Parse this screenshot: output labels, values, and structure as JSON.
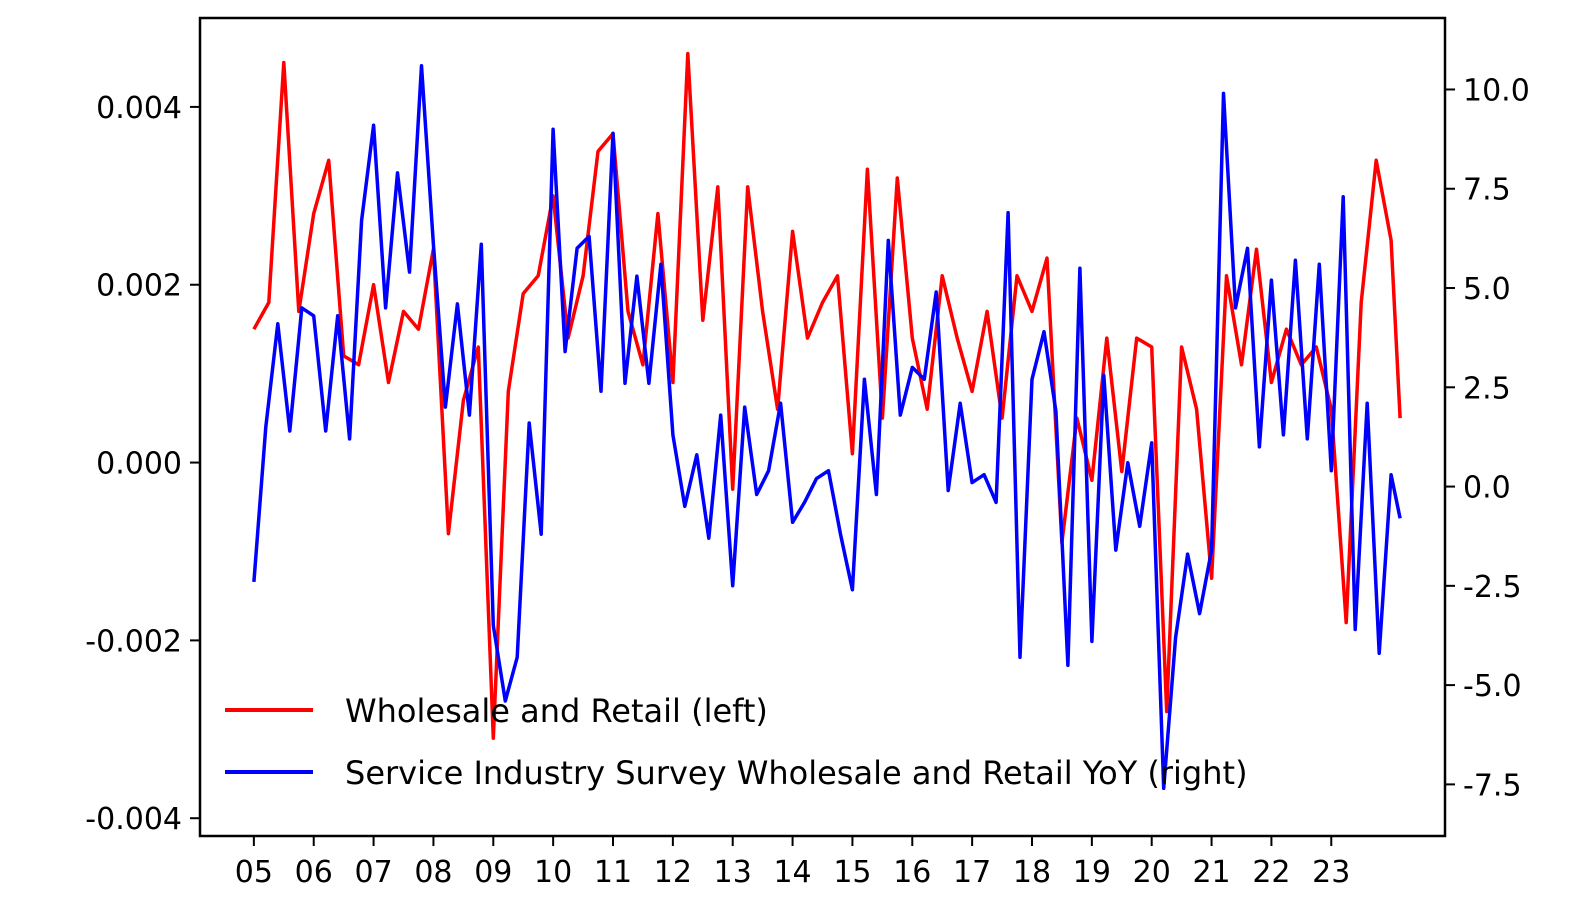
{
  "chart_data": {
    "type": "line",
    "title": "",
    "xlabel": "",
    "ylabel_left": "",
    "ylabel_right": "",
    "x_tick_labels": [
      "05",
      "06",
      "07",
      "08",
      "09",
      "10",
      "11",
      "12",
      "13",
      "14",
      "15",
      "16",
      "17",
      "18",
      "19",
      "20",
      "21",
      "22",
      "23"
    ],
    "x_ticks_years": [
      2005,
      2006,
      2007,
      2008,
      2009,
      2010,
      2011,
      2012,
      2013,
      2014,
      2015,
      2016,
      2017,
      2018,
      2019,
      2020,
      2021,
      2022,
      2023
    ],
    "xlim": [
      2004.1,
      2024.9
    ],
    "left_axis": {
      "ylim": [
        -0.0042,
        0.005
      ],
      "ticks": [
        -0.004,
        -0.002,
        0.0,
        0.002,
        0.004
      ],
      "tick_labels": [
        "-0.004",
        "-0.002",
        "0.000",
        "0.002",
        "0.004"
      ]
    },
    "right_axis": {
      "ylim": [
        -8.8,
        11.8
      ],
      "ticks": [
        -7.5,
        -5.0,
        -2.5,
        0.0,
        2.5,
        5.0,
        7.5,
        10.0
      ],
      "tick_labels": [
        "-7.5",
        "-5.0",
        "-2.5",
        "0.0",
        "2.5",
        "5.0",
        "7.5",
        "10.0"
      ]
    },
    "legend": {
      "placement": "lower-left",
      "entries": [
        "Wholesale and Retail (left)",
        "Service Industry Survey Wholesale and Retail YoY (right)"
      ]
    },
    "series": [
      {
        "name": "Wholesale and Retail (left)",
        "axis": "left",
        "color": "#ff0000",
        "x": [
          2005.0,
          2005.25,
          2005.5,
          2005.75,
          2006.0,
          2006.25,
          2006.5,
          2006.75,
          2007.0,
          2007.25,
          2007.5,
          2007.75,
          2008.0,
          2008.25,
          2008.5,
          2008.75,
          2009.0,
          2009.25,
          2009.5,
          2009.75,
          2010.0,
          2010.25,
          2010.5,
          2010.75,
          2011.0,
          2011.25,
          2011.5,
          2011.75,
          2012.0,
          2012.25,
          2012.5,
          2012.75,
          2013.0,
          2013.25,
          2013.5,
          2013.75,
          2014.0,
          2014.25,
          2014.5,
          2014.75,
          2015.0,
          2015.25,
          2015.5,
          2015.75,
          2016.0,
          2016.25,
          2016.5,
          2016.75,
          2017.0,
          2017.25,
          2017.5,
          2017.75,
          2018.0,
          2018.25,
          2018.5,
          2018.75,
          2019.0,
          2019.25,
          2019.5,
          2019.75,
          2020.0,
          2020.25,
          2020.5,
          2020.75,
          2021.0,
          2021.25,
          2021.5,
          2021.75,
          2022.0,
          2022.25,
          2022.5,
          2022.75,
          2023.0,
          2023.25,
          2023.5,
          2023.75,
          2024.0,
          2024.15
        ],
        "values": [
          0.0015,
          0.0018,
          0.0045,
          0.0017,
          0.0028,
          0.0034,
          0.0012,
          0.0011,
          0.002,
          0.0009,
          0.0017,
          0.0015,
          0.0024,
          -0.0008,
          0.0007,
          0.0013,
          -0.0031,
          0.0008,
          0.0019,
          0.0021,
          0.003,
          0.0014,
          0.0021,
          0.0035,
          0.0037,
          0.0017,
          0.0011,
          0.0028,
          0.0009,
          0.0046,
          0.0016,
          0.0031,
          -0.0003,
          0.0031,
          0.0017,
          0.0006,
          0.0026,
          0.0014,
          0.0018,
          0.0021,
          0.0001,
          0.0033,
          0.0005,
          0.0032,
          0.0014,
          0.0006,
          0.0021,
          0.0014,
          0.0008,
          0.0017,
          0.0005,
          0.0021,
          0.0017,
          0.0023,
          -0.0009,
          0.0005,
          -0.0002,
          0.0014,
          -0.0001,
          0.0014,
          0.0013,
          -0.0028,
          0.0013,
          0.0006,
          -0.0013,
          0.0021,
          0.0011,
          0.0024,
          0.0009,
          0.0015,
          0.0011,
          0.0013,
          0.0006,
          -0.0018,
          0.0018,
          0.0034,
          0.0025,
          0.0005
        ]
      },
      {
        "name": "Service Industry Survey Wholesale and Retail YoY (right)",
        "axis": "right",
        "color": "#0000ff",
        "x": [
          2005.0,
          2005.2,
          2005.4,
          2005.6,
          2005.8,
          2006.0,
          2006.2,
          2006.4,
          2006.6,
          2006.8,
          2007.0,
          2007.2,
          2007.4,
          2007.6,
          2007.8,
          2008.0,
          2008.2,
          2008.4,
          2008.6,
          2008.8,
          2009.0,
          2009.2,
          2009.4,
          2009.6,
          2009.8,
          2010.0,
          2010.2,
          2010.4,
          2010.6,
          2010.8,
          2011.0,
          2011.2,
          2011.4,
          2011.6,
          2011.8,
          2012.0,
          2012.2,
          2012.4,
          2012.6,
          2012.8,
          2013.0,
          2013.2,
          2013.4,
          2013.6,
          2013.8,
          2014.0,
          2014.2,
          2014.4,
          2014.6,
          2014.8,
          2015.0,
          2015.2,
          2015.4,
          2015.6,
          2015.8,
          2016.0,
          2016.2,
          2016.4,
          2016.6,
          2016.8,
          2017.0,
          2017.2,
          2017.4,
          2017.6,
          2017.8,
          2018.0,
          2018.2,
          2018.4,
          2018.6,
          2018.8,
          2019.0,
          2019.2,
          2019.4,
          2019.6,
          2019.8,
          2020.0,
          2020.2,
          2020.4,
          2020.6,
          2020.8,
          2021.0,
          2021.2,
          2021.4,
          2021.6,
          2021.8,
          2022.0,
          2022.2,
          2022.4,
          2022.6,
          2022.8,
          2023.0,
          2023.2,
          2023.4,
          2023.6,
          2023.8,
          2024.0,
          2024.15
        ],
        "values": [
          -2.4,
          1.5,
          4.1,
          1.4,
          4.5,
          4.3,
          1.4,
          4.3,
          1.2,
          6.7,
          9.1,
          4.5,
          7.9,
          5.4,
          10.6,
          6.1,
          2.0,
          4.6,
          1.8,
          6.1,
          -3.5,
          -5.4,
          -4.3,
          1.6,
          -1.2,
          9.0,
          3.4,
          6.0,
          6.3,
          2.4,
          8.9,
          2.6,
          5.3,
          2.6,
          5.6,
          1.3,
          -0.5,
          0.8,
          -1.3,
          1.8,
          -2.5,
          2.0,
          -0.2,
          0.4,
          2.1,
          -0.9,
          -0.4,
          0.2,
          0.4,
          -1.2,
          -2.6,
          2.7,
          -0.2,
          6.2,
          1.8,
          3.0,
          2.7,
          4.9,
          -0.1,
          2.1,
          0.1,
          0.3,
          -0.4,
          6.9,
          -4.3,
          2.7,
          3.9,
          1.9,
          -4.5,
          5.5,
          -3.9,
          2.8,
          -1.6,
          0.6,
          -1.0,
          1.1,
          -7.6,
          -3.8,
          -1.7,
          -3.2,
          -1.6,
          9.9,
          4.5,
          6.0,
          1.0,
          5.2,
          1.3,
          5.7,
          1.2,
          5.6,
          0.4,
          7.3,
          -3.6,
          2.1,
          -4.2,
          0.3,
          -0.8
        ]
      }
    ]
  }
}
